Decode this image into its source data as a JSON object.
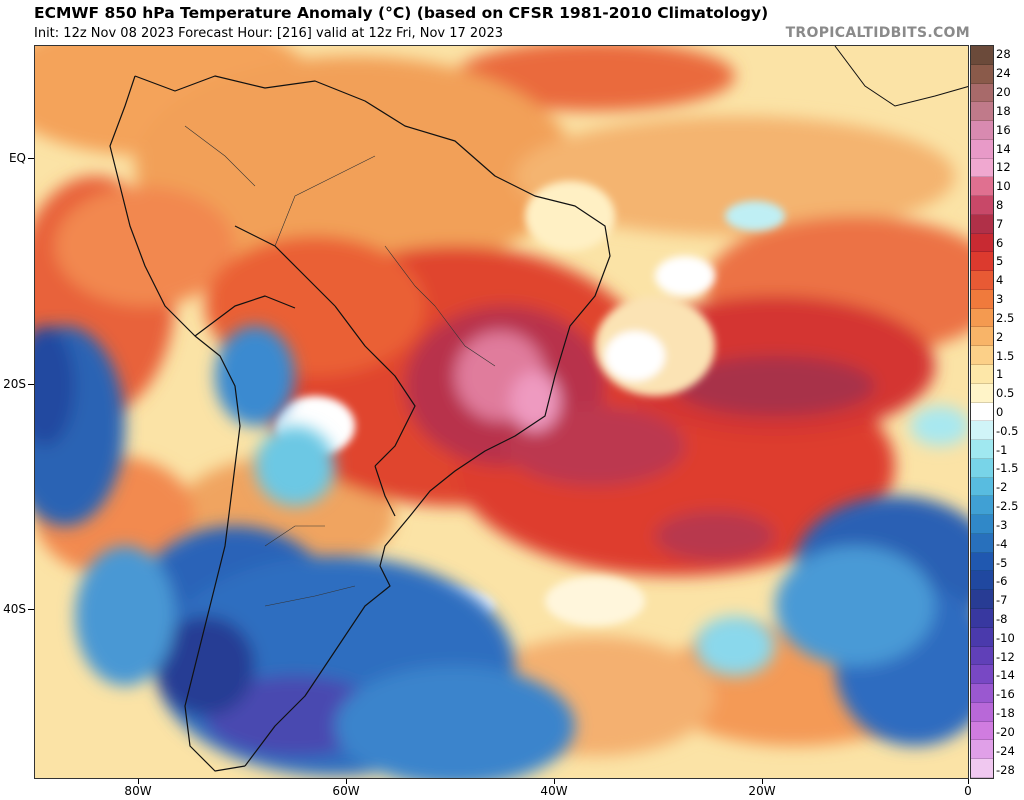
{
  "header": {
    "title": "ECMWF 850 hPa Temperature Anomaly (°C) (based on CFSR 1981-2010 Climatology)",
    "subtitle": "Init: 12z Nov 08 2023   Forecast Hour: [216]   valid at 12z Fri, Nov 17 2023",
    "credit": "TROPICALTIDBITS.COM"
  },
  "axes": {
    "lat_labels": [
      "EQ",
      "20S",
      "40S"
    ],
    "lon_labels": [
      "80W",
      "60W",
      "40W",
      "20W",
      "0"
    ]
  },
  "colorbar": {
    "labels": [
      "28",
      "24",
      "20",
      "18",
      "16",
      "14",
      "12",
      "10",
      "8",
      "7",
      "6",
      "5",
      "4",
      "3",
      "2.5",
      "2",
      "1.5",
      "1",
      "0.5",
      "0",
      "-0.5",
      "-1",
      "-1.5",
      "-2",
      "-2.5",
      "-3",
      "-4",
      "-5",
      "-6",
      "-7",
      "-8",
      "-10",
      "-12",
      "-14",
      "-16",
      "-18",
      "-20",
      "-24",
      "-28"
    ],
    "colors": [
      "#6b4a3a",
      "#8a5a4a",
      "#a86a6a",
      "#c07a8a",
      "#d88ab0",
      "#e89ac8",
      "#f0a8d0",
      "#e07090",
      "#c84868",
      "#b03048",
      "#c82a32",
      "#dc3a2e",
      "#e85a34",
      "#f07a3c",
      "#f49a50",
      "#f8b468",
      "#fcd088",
      "#fde7a8",
      "#fff4c8",
      "#ffffff",
      "#d0f4f8",
      "#a0e8f0",
      "#78d4e8",
      "#58bce0",
      "#40a0d4",
      "#3088c8",
      "#2870bc",
      "#2058b0",
      "#2048a0",
      "#283c94",
      "#3838a0",
      "#4a3aac",
      "#6040b8",
      "#7848c4",
      "#9a58d0",
      "#b868d8",
      "#d07ce0",
      "#e0a0e8",
      "#f0c8f0"
    ]
  }
}
